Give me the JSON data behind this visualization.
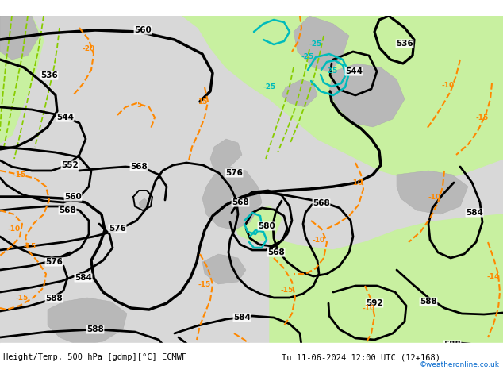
{
  "title_left": "Height/Temp. 500 hPa [gdmp][°C] ECMWF",
  "title_right": "Tu 11-06-2024 12:00 UTC (12+168)",
  "credit": "©weatheronline.co.uk",
  "credit_color": "#0066cc",
  "bg_color": "#d8d8d8",
  "green_color": "#c8f0a0",
  "land_color": "#b8b8b8",
  "z500_color": "#000000",
  "temp_orange_color": "#ff8800",
  "temp_cyan_color": "#00bbbb",
  "z850_color": "#88cc00"
}
